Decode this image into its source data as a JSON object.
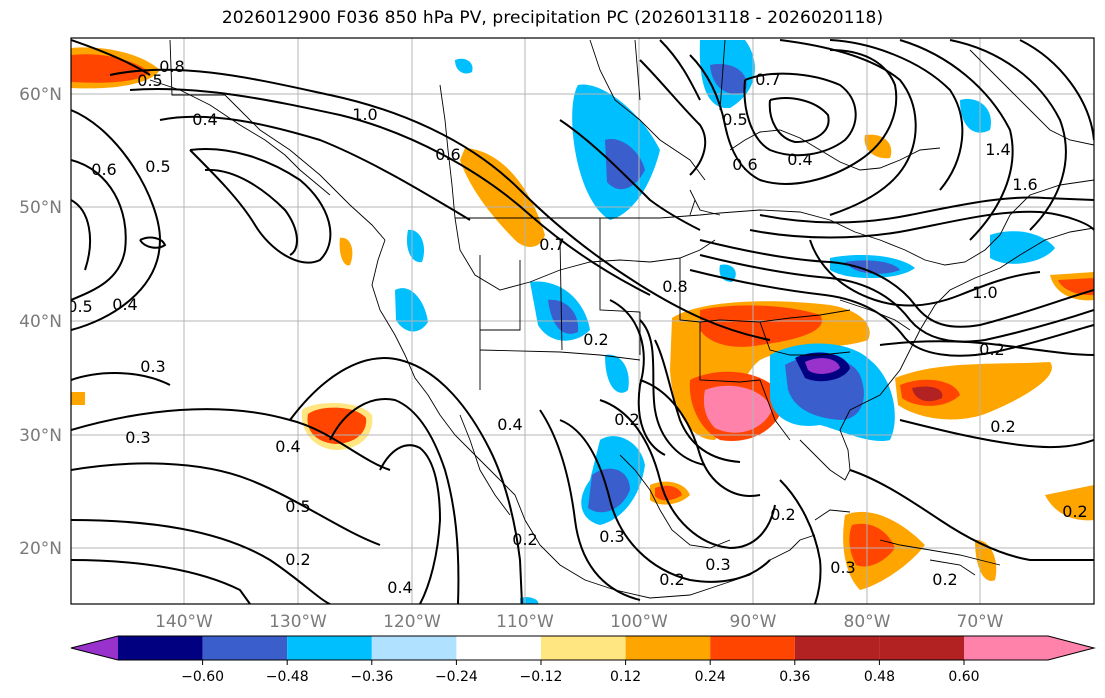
{
  "title": "2026012900 F036 850 hPa PV, precipitation PC (2026013118 - 2026020118)",
  "lat_labels": [
    "60°N",
    "50°N",
    "40°N",
    "30°N",
    "20°N"
  ],
  "lon_labels": [
    "140°W",
    "130°W",
    "120°W",
    "110°W",
    "100°W",
    "90°W",
    "80°W",
    "70°W"
  ],
  "contour_labels": [
    "0.8",
    "0.5",
    "1.0",
    "0.4",
    "0.6",
    "0.5",
    "0.7",
    "0.7",
    "0.5",
    "0.6",
    "0.4",
    "0.6",
    "0.5",
    "0.4",
    "0.3",
    "0.3",
    "0.4",
    "0.5",
    "0.2",
    "0.4",
    "0.4",
    "0.2",
    "0.2",
    "0.8",
    "0.2",
    "0.3",
    "0.2",
    "0.2",
    "0.3",
    "0.2",
    "0.3",
    "0.2",
    "0.2",
    "1.4",
    "1.6",
    "1.0",
    "0.2"
  ],
  "colorbar": {
    "ticks": [
      "−0.60",
      "−0.48",
      "−0.36",
      "−0.24",
      "−0.12",
      "0.12",
      "0.24",
      "0.36",
      "0.48",
      "0.60"
    ],
    "colors": [
      "#9932cc",
      "#000080",
      "#3a5fcd",
      "#00bfff",
      "#b0e2ff",
      "#ffffff",
      "#ffe680",
      "#ffa500",
      "#ff4500",
      "#b22222",
      "#ff82ab"
    ]
  }
}
